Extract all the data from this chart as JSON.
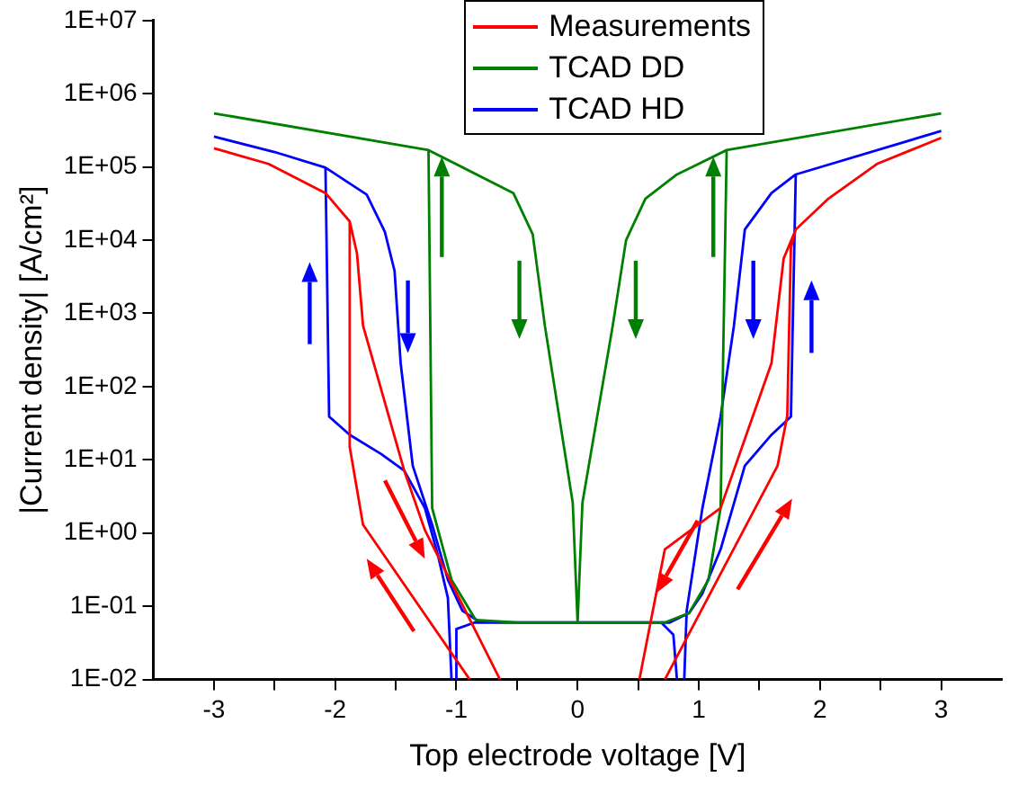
{
  "chart_data": {
    "type": "line",
    "xlabel": "Top electrode voltage [V]",
    "ylabel": "|Current density| [A/cm²]",
    "log": "y",
    "grid": false,
    "legend": "top",
    "marker": "none",
    "line_style": "solid",
    "xlim": [
      -3.5,
      3.5
    ],
    "xticks": [
      -3,
      {
        "value": -2.5,
        "label": null
      },
      -2,
      {
        "value": -1.5,
        "label": null
      },
      -1,
      {
        "value": -0.5,
        "label": null
      },
      0,
      {
        "value": 0.5,
        "label": null
      },
      1,
      {
        "value": 1.5,
        "label": null
      },
      2,
      {
        "value": 2.5,
        "label": null
      },
      3
    ],
    "ylim": [
      0.01,
      10000000
    ],
    "yticks": [
      {
        "value": 0.01,
        "label": "1E-02"
      },
      {
        "value": 0.1,
        "label": "1E-01"
      },
      {
        "value": 1,
        "label": "1E+00"
      },
      {
        "value": 10,
        "label": "1E+01"
      },
      {
        "value": 100,
        "label": "1E+02"
      },
      {
        "value": 1000,
        "label": "1E+03"
      },
      {
        "value": 10000,
        "label": "1E+04"
      },
      {
        "value": 100000,
        "label": "1E+05"
      },
      {
        "value": 1000000,
        "label": "1E+06"
      },
      {
        "value": 10000000,
        "label": "1E+07"
      }
    ],
    "series": [
      {
        "name": "Measurements",
        "color": "#ff0000",
        "x": [
          -3,
          -2.55,
          -2.08,
          -1.88,
          -1.88,
          -1.77,
          -0.89,
          null,
          -0.64,
          -1.26,
          -1.43,
          -1.77,
          -1.82,
          -1.88,
          null,
          0.51,
          0.72,
          1.18,
          1.6,
          1.7,
          1.8,
          2.07,
          2.47,
          3,
          null,
          0.72,
          1.65,
          1.73,
          1.76,
          1.8
        ],
        "values": [
          180000,
          110000,
          44000,
          18000,
          15,
          1.3,
          0.01,
          null,
          0.01,
          1.1,
          7.1,
          680,
          6600,
          18000,
          null,
          0.01,
          0.6,
          2.2,
          210,
          5600,
          14000,
          37000,
          110000,
          250000,
          null,
          0.01,
          8.3,
          40,
          7900,
          14000
        ]
      },
      {
        "name": "TCAD DD",
        "color": "#008000",
        "x": [
          -3,
          -1.23,
          -1.2,
          -1.04,
          -0.84,
          -0.5,
          0,
          0.72,
          0.92,
          1.08,
          1.18,
          1.23,
          3,
          null,
          -1.23,
          -0.53,
          -0.37,
          -0.27,
          -0.04,
          0,
          0.04,
          0.29,
          0.4,
          0.56,
          0.82,
          1.23
        ],
        "values": [
          540000,
          170000,
          2.2,
          0.23,
          0.065,
          0.06,
          0.06,
          0.06,
          0.081,
          0.23,
          2.2,
          170000,
          540000,
          null,
          170000,
          44000,
          12000,
          680,
          2.6,
          0.06,
          2.6,
          680,
          10000,
          37000,
          79000,
          170000
        ]
      },
      {
        "name": "TCAD HD",
        "color": "#0000ff",
        "x": [
          -3,
          -2.5,
          -2.08,
          -1.74,
          -1.59,
          -1.51,
          -1.46,
          -1.36,
          -1.2,
          -1.07,
          -0.95,
          -0.8,
          0.69,
          0.79,
          0.82,
          null,
          -2.08,
          -2.05,
          -1.88,
          -1.62,
          -1.43,
          -1.26,
          -1.15,
          -1.07,
          -1.04,
          null,
          -1,
          -1,
          -0.85,
          0.76,
          0.92,
          1.03,
          1.18,
          1.38,
          1.6,
          1.76,
          1.8,
          3,
          null,
          0.88,
          0.9,
          1.03,
          1.18,
          1.29,
          1.38,
          1.6,
          1.8
        ],
        "values": [
          260000,
          160000,
          98000,
          42000,
          13000,
          3800,
          210,
          8.3,
          1.3,
          0.23,
          0.087,
          0.06,
          0.06,
          0.041,
          0.01,
          null,
          98000,
          39,
          22,
          12,
          7.1,
          2.2,
          0.48,
          0.13,
          0.01,
          null,
          0.01,
          0.049,
          0.06,
          0.06,
          0.081,
          0.15,
          0.6,
          8.3,
          22,
          39,
          79000,
          310000,
          null,
          0.01,
          0.087,
          2.2,
          39,
          680,
          14000,
          44000,
          79000
        ]
      }
    ]
  }
}
